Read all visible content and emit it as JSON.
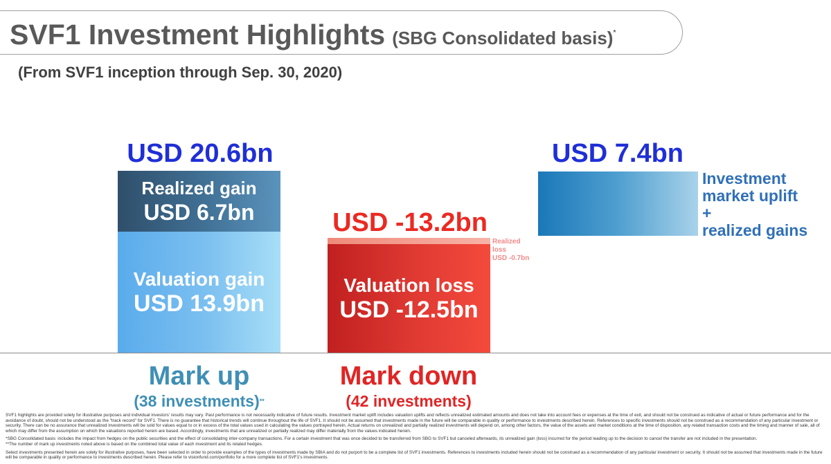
{
  "header": {
    "title": "SVF1 Investment Highlights",
    "title_basis": "(SBG Consolidated basis)",
    "title_mark": "*",
    "subtitle": "(From SVF1 inception through Sep. 30, 2020)"
  },
  "chart_data": {
    "type": "bar",
    "title": "SVF1 Investment Highlights",
    "unit": "USD bn",
    "groups": [
      {
        "category": "Mark up",
        "category_detail": "(38 investments)",
        "category_mark": "**",
        "total_label": "USD 20.6bn",
        "total": 20.6,
        "segments": [
          {
            "name": "Valuation gain",
            "label": "USD 13.9bn",
            "value": 13.9
          },
          {
            "name": "Realized gain",
            "label": "USD 6.7bn",
            "value": 6.7
          }
        ]
      },
      {
        "category": "Mark down",
        "category_detail": "(42 investments)",
        "total_label": "USD -13.2bn",
        "total": -13.2,
        "segments": [
          {
            "name": "Valuation loss",
            "label": "USD -12.5bn",
            "value": -12.5
          },
          {
            "name": "Realized loss",
            "label": "USD -0.7bn",
            "value": -0.7
          }
        ]
      },
      {
        "category": "",
        "total_label": "USD 7.4bn",
        "total": 7.4,
        "legend_lines": [
          "Investment",
          "market uplift",
          "+",
          "realized gains"
        ]
      }
    ]
  },
  "colors": {
    "markup_total": "#1f2fd6",
    "markdown_total": "#ea2a22",
    "markup_category": "#3f8fb5",
    "markdown_category": "#e02525",
    "uplift_legend": "#3070b8",
    "realized_loss_text": "#f08a8a"
  },
  "footnotes": [
    "SVF1 highlights are provided solely for illustrative purposes and individual investors' results may vary. Past performance is not necessarily indicative of future results. Investment market uplift includes valuation uplifts and reflects unrealized estimated amounts and does not take into account fees or expenses at the time of exit, and should not be construed as indicative of actual or future performance and for the avoidance of doubt, should not be understood as the \"track record\" for SVF1. There is no guarantee that historical trends will continue throughout the life of SVF1. It should not be assumed that investments made in the future will be comparable in quality or performance to investments described herein. References to specific investments should not be construed as a recommendation of any particular investment or security. There can be no assurance that unrealized investments will be sold for values equal to or in excess of the total values used in calculating the values portrayed herein. Actual returns on unrealized and partially realized investments will depend on, among other factors, the value of the assets and market conditions at the time of disposition, any related transaction costs and the timing and manner of sale, all of which may differ from the assumption on which the valuations reported herein are based. Accordingly, investments that are unrealized or partially realized may differ materially from the values indicated herein.",
    "*SBG Consolidated basis: includes the impact from hedges on the public securities and the effect of consolidating inter-company transactions. For a certain investment that was once decided to be transferred from SBG to SVF1 but canceled afterwards, its unrealized gain (loss) incurred for the period leading up to the decision to cancel the transfer are not included in the presentation.",
    "**The number of mark up investments noted above is based on the combined total value of each investment and its related hedges.",
    "Select investments presented herein are solely for illustrative purposes, have been selected in order to provide examples of the types of investments made by SBIA and do not purport to be a complete list of SVF1 investments. References to investments included herein should not be construed as a recommendation of any particular investment or security. It should not be assumed that investments made in the future will be comparable in quality or performance to investments described herein. Please refer to visionfund.com/portfolio for a more complete list of SVF1's investments."
  ]
}
